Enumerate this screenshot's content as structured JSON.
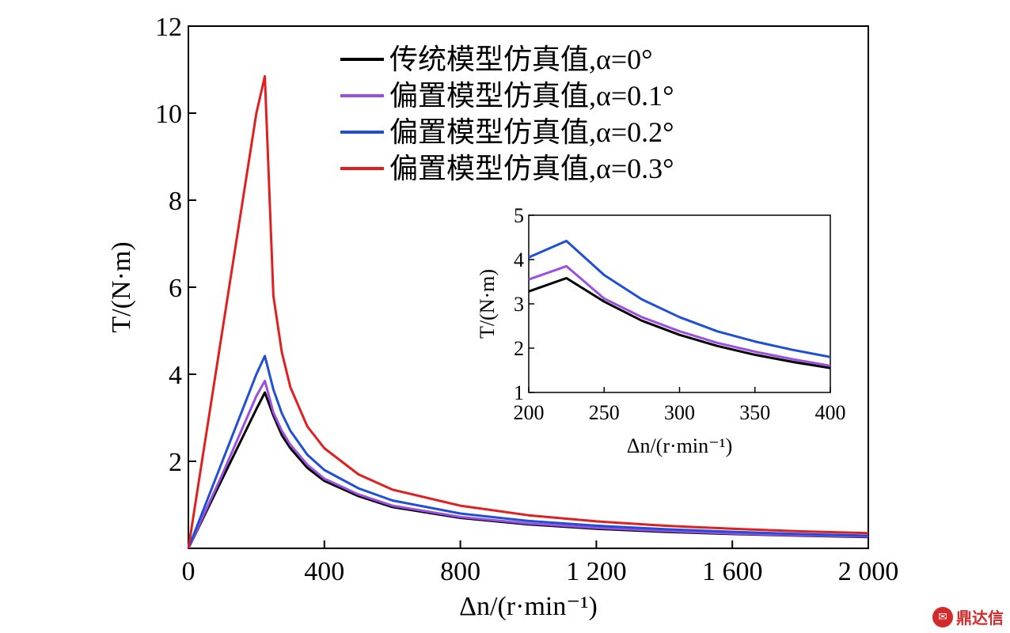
{
  "chart_data": [
    {
      "type": "line",
      "title": "",
      "xlabel": "Δn/(r·min⁻¹)",
      "ylabel": "T/(N·m)",
      "xlim": [
        0,
        2000
      ],
      "ylim": [
        0,
        12
      ],
      "xticks": [
        0,
        400,
        800,
        1200,
        1600,
        2000
      ],
      "xtick_labels": [
        "0",
        "400",
        "800",
        "1 200",
        "1 600",
        "2 000"
      ],
      "yticks": [
        2,
        4,
        6,
        8,
        10,
        12
      ],
      "ytick_labels": [
        "2",
        "4",
        "6",
        "8",
        "10",
        "12"
      ],
      "legend_position": "top-right",
      "grid": false,
      "series": [
        {
          "name": "传统模型仿真值,α=0°",
          "color": "#000000",
          "x": [
            0,
            100,
            200,
            225,
            250,
            275,
            300,
            350,
            400,
            500,
            600,
            800,
            1000,
            1200,
            1400,
            1600,
            1800,
            2000
          ],
          "y": [
            0,
            1.6,
            3.2,
            3.58,
            3.05,
            2.6,
            2.3,
            1.85,
            1.55,
            1.2,
            0.95,
            0.7,
            0.55,
            0.45,
            0.38,
            0.33,
            0.29,
            0.26
          ]
        },
        {
          "name": "偏置模型仿真值,α=0.1°",
          "color": "#9b4fe0",
          "x": [
            0,
            100,
            200,
            225,
            250,
            275,
            300,
            350,
            400,
            500,
            600,
            800,
            1000,
            1200,
            1400,
            1600,
            1800,
            2000
          ],
          "y": [
            0,
            1.7,
            3.5,
            3.85,
            3.12,
            2.7,
            2.38,
            1.92,
            1.6,
            1.24,
            0.98,
            0.72,
            0.57,
            0.47,
            0.4,
            0.34,
            0.3,
            0.27
          ]
        },
        {
          "name": "偏置模型仿真值,α=0.2°",
          "color": "#1f4fd6",
          "x": [
            0,
            100,
            200,
            225,
            250,
            275,
            300,
            350,
            400,
            500,
            600,
            800,
            1000,
            1200,
            1400,
            1600,
            1800,
            2000
          ],
          "y": [
            0,
            2.0,
            4.0,
            4.42,
            3.65,
            3.1,
            2.7,
            2.15,
            1.8,
            1.38,
            1.1,
            0.8,
            0.63,
            0.52,
            0.44,
            0.38,
            0.33,
            0.29
          ]
        },
        {
          "name": "偏置模型仿真值,α=0.3°",
          "color": "#e02020",
          "x": [
            0,
            100,
            200,
            225,
            250,
            275,
            300,
            350,
            400,
            500,
            600,
            800,
            1000,
            1200,
            1400,
            1600,
            1800,
            2000
          ],
          "y": [
            0,
            5.0,
            10.0,
            10.85,
            5.8,
            4.5,
            3.7,
            2.8,
            2.3,
            1.7,
            1.35,
            0.98,
            0.76,
            0.62,
            0.52,
            0.45,
            0.39,
            0.35
          ]
        }
      ]
    },
    {
      "type": "line",
      "title": "",
      "xlabel": "Δn/(r·min⁻¹)",
      "ylabel": "T/(N·m)",
      "xlim": [
        200,
        400
      ],
      "ylim": [
        1,
        5
      ],
      "xticks": [
        200,
        250,
        300,
        350,
        400
      ],
      "xtick_labels": [
        "200",
        "250",
        "300",
        "350",
        "400"
      ],
      "yticks": [
        1,
        2,
        3,
        4,
        5
      ],
      "ytick_labels": [
        "1",
        "2",
        "3",
        "4",
        "5"
      ],
      "grid": false,
      "series": [
        {
          "color": "#000000",
          "x": [
            200,
            225,
            250,
            275,
            300,
            325,
            350,
            375,
            400
          ],
          "y": [
            3.28,
            3.58,
            3.05,
            2.62,
            2.3,
            2.05,
            1.85,
            1.69,
            1.55
          ]
        },
        {
          "color": "#9b4fe0",
          "x": [
            200,
            225,
            250,
            275,
            300,
            325,
            350,
            375,
            400
          ],
          "y": [
            3.55,
            3.85,
            3.12,
            2.7,
            2.38,
            2.12,
            1.92,
            1.75,
            1.6
          ]
        },
        {
          "color": "#1f4fd6",
          "x": [
            200,
            225,
            250,
            275,
            300,
            325,
            350,
            375,
            400
          ],
          "y": [
            4.05,
            4.42,
            3.65,
            3.1,
            2.7,
            2.38,
            2.15,
            1.96,
            1.8
          ]
        }
      ]
    }
  ],
  "watermark": {
    "icon": "dingdaxin-logo-icon",
    "text": "鼎达信"
  }
}
